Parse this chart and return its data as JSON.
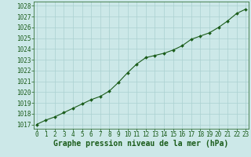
{
  "title": "Graphe pression niveau de la mer (hPa)",
  "x_values": [
    0,
    1,
    2,
    3,
    4,
    5,
    6,
    7,
    8,
    9,
    10,
    11,
    12,
    13,
    14,
    15,
    16,
    17,
    18,
    19,
    20,
    21,
    22,
    23
  ],
  "y_values": [
    1017.0,
    1017.4,
    1017.7,
    1018.1,
    1018.5,
    1018.9,
    1019.3,
    1019.6,
    1020.1,
    1020.9,
    1021.8,
    1022.6,
    1023.2,
    1023.4,
    1023.6,
    1023.9,
    1024.3,
    1024.9,
    1025.2,
    1025.5,
    1026.0,
    1026.6,
    1027.3,
    1027.7
  ],
  "xlim": [
    -0.3,
    23.3
  ],
  "ylim": [
    1016.6,
    1028.4
  ],
  "yticks": [
    1017,
    1018,
    1019,
    1020,
    1021,
    1022,
    1023,
    1024,
    1025,
    1026,
    1027,
    1028
  ],
  "xticks": [
    0,
    1,
    2,
    3,
    4,
    5,
    6,
    7,
    8,
    9,
    10,
    11,
    12,
    13,
    14,
    15,
    16,
    17,
    18,
    19,
    20,
    21,
    22,
    23
  ],
  "line_color": "#1a5c1a",
  "marker_color": "#1a5c1a",
  "bg_color": "#cce8e8",
  "grid_color": "#aad0d0",
  "title_color": "#1a5c1a",
  "tick_color": "#1a5c1a",
  "axis_color": "#1a5c1a",
  "title_fontsize": 7.0,
  "tick_fontsize": 5.5
}
